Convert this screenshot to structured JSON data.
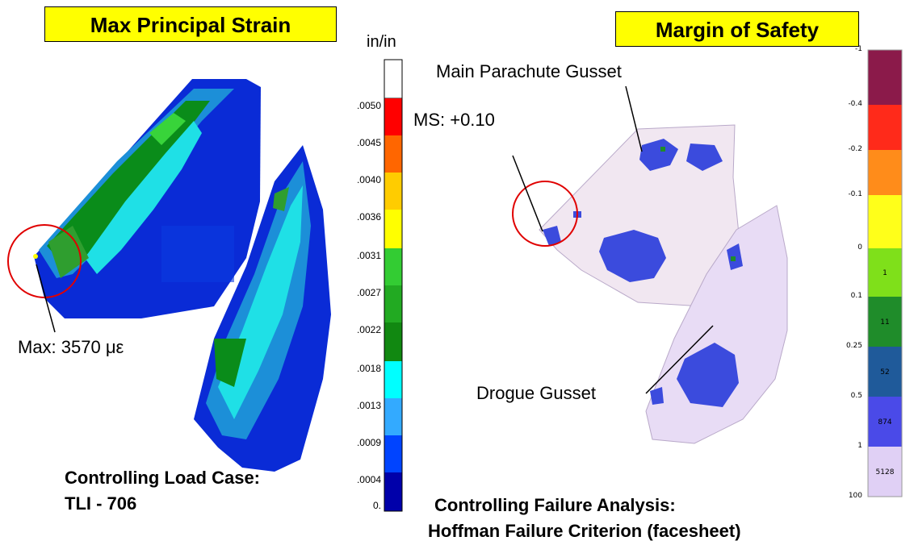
{
  "left_panel": {
    "title": "Max Principal Strain",
    "units": "in/in",
    "max_label": "Max: 3570 με",
    "load_case_line1": "Controlling Load Case:",
    "load_case_line2": "TLI - 706",
    "colorbar": {
      "ticks": [
        ".0050",
        ".0045",
        ".0040",
        ".0036",
        ".0031",
        ".0027",
        ".0022",
        ".0018",
        ".0013",
        ".0009",
        ".0004",
        "0."
      ],
      "colors": [
        "#ffffff",
        "#ff0000",
        "#ff6600",
        "#ff9900",
        "#ffcc00",
        "#ffff00",
        "#33cc33",
        "#22aa22",
        "#118811",
        "#00ffff",
        "#33aaff",
        "#0044ff",
        "#0000cc",
        "#000088"
      ]
    }
  },
  "right_panel": {
    "title": "Margin of Safety",
    "main_gusset_label": "Main Parachute Gusset",
    "ms_label": "MS: +0.10",
    "drogue_label": "Drogue Gusset",
    "failure_line1": "Controlling Failure Analysis:",
    "failure_line2": "Hoffman Failure Criterion (facesheet)",
    "legend": {
      "ticks": [
        "-1",
        "-0.4",
        "-0.2",
        "-0.1",
        "0",
        "0.1",
        "0.25",
        "0.5",
        "1",
        "100"
      ],
      "bands": [
        {
          "color": "#8b1a4a",
          "count": ""
        },
        {
          "color": "#ff2a1a",
          "count": ""
        },
        {
          "color": "#ff8c1a",
          "count": ""
        },
        {
          "color": "#ffff1a",
          "count": ""
        },
        {
          "color": "#7fe01a",
          "count": "1"
        },
        {
          "color": "#1f8c2a",
          "count": "11"
        },
        {
          "color": "#1f5a9a",
          "count": "52"
        },
        {
          "color": "#4a4ae8",
          "count": "874"
        },
        {
          "color": "#e0d0f5",
          "count": "5128"
        }
      ]
    }
  }
}
